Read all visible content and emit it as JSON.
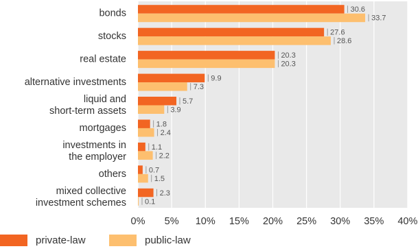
{
  "chart_data": {
    "type": "bar",
    "orientation": "horizontal",
    "categories": [
      [
        "bonds"
      ],
      [
        "stocks"
      ],
      [
        "real estate"
      ],
      [
        "alternative investments"
      ],
      [
        "liquid and",
        "short-term assets"
      ],
      [
        "mortgages"
      ],
      [
        "investments in",
        "the employer"
      ],
      [
        "others"
      ],
      [
        "mixed collective",
        "investment schemes"
      ]
    ],
    "series": [
      {
        "name": "private-law",
        "color": "#f26522",
        "values": [
          30.6,
          27.6,
          20.3,
          9.9,
          5.7,
          1.8,
          1.1,
          0.7,
          2.3
        ]
      },
      {
        "name": "public-law",
        "color": "#fdbf6f",
        "values": [
          33.7,
          28.6,
          20.3,
          7.3,
          3.9,
          2.4,
          2.2,
          1.5,
          0.1
        ]
      }
    ],
    "xlim": [
      0,
      40
    ],
    "xticks": [
      "0%",
      "5%",
      "10%",
      "15%",
      "20%",
      "25%",
      "30%",
      "35%",
      "40%"
    ],
    "grid": true,
    "legend": "bottom-left"
  }
}
